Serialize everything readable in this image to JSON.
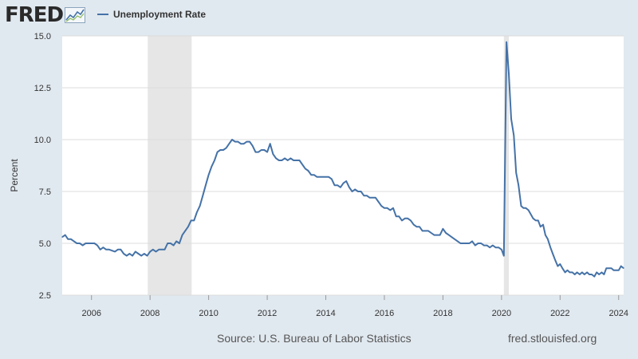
{
  "header": {
    "logo_text": "FRED",
    "logo_icon": "chart-line-icon",
    "legend_label": "Unemployment Rate"
  },
  "footer": {
    "source": "Source: U.S. Bureau of Labor Statistics",
    "site": "fred.stlouisfed.org"
  },
  "chart_data": {
    "type": "line",
    "title": "",
    "xlabel": "",
    "ylabel": "Percent",
    "x_range": [
      2005.0,
      2024.17
    ],
    "ylim": [
      2.5,
      15.0
    ],
    "y_ticks": [
      "2.5",
      "5.0",
      "7.5",
      "10.0",
      "12.5",
      "15.0"
    ],
    "x_ticks": [
      "2006",
      "2008",
      "2010",
      "2012",
      "2014",
      "2016",
      "2018",
      "2020",
      "2022",
      "2024"
    ],
    "grid": "horizontal",
    "line_color": "#4572a7",
    "recession_color": "#e6e6e6",
    "recessions": [
      [
        2007.92,
        2009.42
      ],
      [
        2020.08,
        2020.25
      ]
    ],
    "series": [
      {
        "name": "Unemployment Rate",
        "points": [
          [
            2005.0,
            5.3
          ],
          [
            2005.1,
            5.4
          ],
          [
            2005.2,
            5.2
          ],
          [
            2005.3,
            5.2
          ],
          [
            2005.4,
            5.1
          ],
          [
            2005.5,
            5.0
          ],
          [
            2005.6,
            5.0
          ],
          [
            2005.7,
            4.9
          ],
          [
            2005.8,
            5.0
          ],
          [
            2005.9,
            5.0
          ],
          [
            2006.1,
            5.0
          ],
          [
            2006.2,
            4.9
          ],
          [
            2006.3,
            4.7
          ],
          [
            2006.4,
            4.8
          ],
          [
            2006.5,
            4.7
          ],
          [
            2006.6,
            4.7
          ],
          [
            2006.8,
            4.6
          ],
          [
            2006.9,
            4.7
          ],
          [
            2007.0,
            4.7
          ],
          [
            2007.1,
            4.5
          ],
          [
            2007.2,
            4.4
          ],
          [
            2007.3,
            4.5
          ],
          [
            2007.4,
            4.4
          ],
          [
            2007.5,
            4.6
          ],
          [
            2007.6,
            4.5
          ],
          [
            2007.7,
            4.4
          ],
          [
            2007.8,
            4.5
          ],
          [
            2007.9,
            4.4
          ],
          [
            2008.0,
            4.6
          ],
          [
            2008.1,
            4.7
          ],
          [
            2008.2,
            4.6
          ],
          [
            2008.3,
            4.7
          ],
          [
            2008.5,
            4.7
          ],
          [
            2008.6,
            5.0
          ],
          [
            2008.7,
            5.0
          ],
          [
            2008.8,
            4.9
          ],
          [
            2008.9,
            5.1
          ],
          [
            2009.0,
            5.0
          ],
          [
            2009.1,
            5.4
          ],
          [
            2009.2,
            5.6
          ],
          [
            2009.3,
            5.8
          ],
          [
            2009.4,
            6.1
          ],
          [
            2009.5,
            6.1
          ],
          [
            2009.6,
            6.5
          ],
          [
            2009.7,
            6.8
          ],
          [
            2009.8,
            7.3
          ],
          [
            2009.9,
            7.8
          ],
          [
            2010.0,
            8.3
          ],
          [
            2010.1,
            8.7
          ],
          [
            2010.2,
            9.0
          ],
          [
            2010.3,
            9.4
          ],
          [
            2010.4,
            9.5
          ],
          [
            2010.5,
            9.5
          ],
          [
            2010.6,
            9.6
          ],
          [
            2010.7,
            9.8
          ],
          [
            2010.8,
            10.0
          ],
          [
            2010.9,
            9.9
          ],
          [
            2011.0,
            9.9
          ],
          [
            2011.1,
            9.8
          ],
          [
            2011.2,
            9.8
          ],
          [
            2011.3,
            9.9
          ],
          [
            2011.4,
            9.9
          ],
          [
            2011.5,
            9.7
          ],
          [
            2011.6,
            9.4
          ],
          [
            2011.7,
            9.4
          ],
          [
            2011.8,
            9.5
          ],
          [
            2011.9,
            9.5
          ],
          [
            2012.0,
            9.4
          ],
          [
            2012.1,
            9.8
          ],
          [
            2012.2,
            9.3
          ],
          [
            2012.3,
            9.1
          ],
          [
            2012.4,
            9.0
          ],
          [
            2012.5,
            9.0
          ],
          [
            2012.6,
            9.1
          ],
          [
            2012.7,
            9.0
          ],
          [
            2012.8,
            9.1
          ],
          [
            2012.9,
            9.0
          ],
          [
            2013.0,
            9.0
          ],
          [
            2013.1,
            9.0
          ],
          [
            2013.2,
            8.8
          ],
          [
            2013.3,
            8.6
          ],
          [
            2013.4,
            8.5
          ],
          [
            2013.5,
            8.3
          ],
          [
            2013.6,
            8.3
          ],
          [
            2013.7,
            8.2
          ],
          [
            2013.8,
            8.2
          ],
          [
            2013.9,
            8.2
          ],
          [
            2014.0,
            8.2
          ],
          [
            2014.1,
            8.2
          ],
          [
            2014.2,
            8.1
          ],
          [
            2014.3,
            7.8
          ],
          [
            2014.4,
            7.8
          ],
          [
            2014.5,
            7.7
          ],
          [
            2014.6,
            7.9
          ],
          [
            2014.7,
            8.0
          ],
          [
            2014.8,
            7.7
          ],
          [
            2014.9,
            7.5
          ],
          [
            2015.0,
            7.6
          ],
          [
            2015.1,
            7.5
          ],
          [
            2015.2,
            7.5
          ],
          [
            2015.3,
            7.3
          ],
          [
            2015.4,
            7.3
          ],
          [
            2015.5,
            7.2
          ],
          [
            2015.6,
            7.2
          ],
          [
            2015.7,
            7.2
          ],
          [
            2015.8,
            7.0
          ],
          [
            2015.9,
            6.8
          ],
          [
            2016.0,
            6.7
          ],
          [
            2016.1,
            6.7
          ],
          [
            2016.2,
            6.6
          ],
          [
            2016.3,
            6.7
          ],
          [
            2016.4,
            6.3
          ],
          [
            2016.5,
            6.3
          ],
          [
            2016.6,
            6.1
          ],
          [
            2016.7,
            6.2
          ],
          [
            2016.8,
            6.2
          ],
          [
            2016.9,
            6.1
          ],
          [
            2017.0,
            5.9
          ],
          [
            2017.1,
            5.8
          ],
          [
            2017.2,
            5.8
          ],
          [
            2017.3,
            5.6
          ],
          [
            2017.4,
            5.6
          ],
          [
            2017.5,
            5.6
          ],
          [
            2017.6,
            5.5
          ],
          [
            2017.7,
            5.4
          ],
          [
            2017.8,
            5.4
          ],
          [
            2017.9,
            5.4
          ],
          [
            2018.0,
            5.7
          ],
          [
            2018.1,
            5.5
          ],
          [
            2018.2,
            5.4
          ],
          [
            2018.3,
            5.3
          ],
          [
            2018.4,
            5.2
          ],
          [
            2018.5,
            5.1
          ],
          [
            2018.6,
            5.0
          ],
          [
            2018.7,
            5.0
          ],
          [
            2018.8,
            5.0
          ],
          [
            2018.9,
            5.0
          ],
          [
            2019.0,
            5.1
          ],
          [
            2019.1,
            4.9
          ],
          [
            2019.2,
            5.0
          ],
          [
            2019.3,
            5.0
          ],
          [
            2019.4,
            4.9
          ],
          [
            2019.5,
            4.9
          ],
          [
            2019.6,
            4.8
          ],
          [
            2019.7,
            4.9
          ],
          [
            2019.8,
            4.8
          ],
          [
            2019.9,
            4.8
          ],
          [
            2020.0,
            4.7
          ],
          [
            2020.08,
            4.4
          ],
          [
            2020.17,
            14.7
          ],
          [
            2020.25,
            13.2
          ],
          [
            2020.33,
            11.0
          ],
          [
            2020.42,
            10.2
          ],
          [
            2020.5,
            8.4
          ],
          [
            2020.58,
            7.8
          ],
          [
            2020.67,
            6.8
          ],
          [
            2020.75,
            6.7
          ],
          [
            2020.83,
            6.7
          ],
          [
            2020.92,
            6.6
          ],
          [
            2021.0,
            6.4
          ],
          [
            2021.08,
            6.2
          ],
          [
            2021.17,
            6.1
          ],
          [
            2021.25,
            6.1
          ],
          [
            2021.33,
            5.8
          ],
          [
            2021.42,
            5.9
          ],
          [
            2021.5,
            5.4
          ],
          [
            2021.58,
            5.2
          ],
          [
            2021.67,
            4.8
          ],
          [
            2021.75,
            4.5
          ],
          [
            2021.83,
            4.2
          ],
          [
            2021.92,
            3.9
          ],
          [
            2022.0,
            4.0
          ],
          [
            2022.08,
            3.8
          ],
          [
            2022.17,
            3.6
          ],
          [
            2022.25,
            3.7
          ],
          [
            2022.33,
            3.6
          ],
          [
            2022.42,
            3.6
          ],
          [
            2022.5,
            3.5
          ],
          [
            2022.58,
            3.6
          ],
          [
            2022.67,
            3.5
          ],
          [
            2022.75,
            3.6
          ],
          [
            2022.83,
            3.5
          ],
          [
            2022.92,
            3.6
          ],
          [
            2023.0,
            3.5
          ],
          [
            2023.08,
            3.5
          ],
          [
            2023.17,
            3.4
          ],
          [
            2023.25,
            3.6
          ],
          [
            2023.33,
            3.5
          ],
          [
            2023.42,
            3.6
          ],
          [
            2023.5,
            3.5
          ],
          [
            2023.58,
            3.8
          ],
          [
            2023.67,
            3.8
          ],
          [
            2023.75,
            3.8
          ],
          [
            2023.83,
            3.7
          ],
          [
            2023.92,
            3.7
          ],
          [
            2024.0,
            3.7
          ],
          [
            2024.08,
            3.9
          ],
          [
            2024.17,
            3.8
          ]
        ]
      }
    ]
  }
}
